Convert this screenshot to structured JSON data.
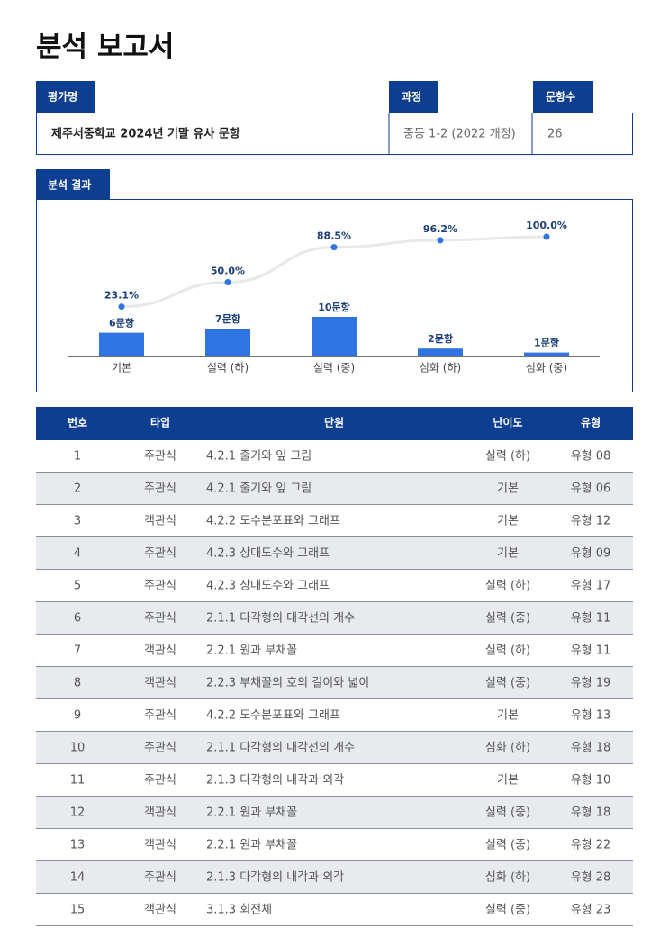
{
  "header": {
    "title": "분석 보고서"
  },
  "info": {
    "labels": [
      "평가명",
      "과정",
      "문항수"
    ],
    "values": [
      "제주서중학교 2024년 기말 유사 문항",
      "중등 1-2 (2022 개정)",
      "26"
    ]
  },
  "section": {
    "title": "분석 결과"
  },
  "chart_data": {
    "type": "combo",
    "categories": [
      "기본",
      "실력 (하)",
      "실력 (중)",
      "심화 (하)",
      "심화 (중)"
    ],
    "bars": {
      "values": [
        6,
        7,
        10,
        2,
        1
      ],
      "value_labels": [
        "6문항",
        "7문항",
        "10문항",
        "2문항",
        "1문항"
      ],
      "color": "#2f74e0"
    },
    "line": {
      "values": [
        23.1,
        50.0,
        88.5,
        96.2,
        100.0
      ],
      "value_labels": [
        "23.1%",
        "50.0%",
        "88.5%",
        "96.2%",
        "100.0%"
      ],
      "color": "#e6e8ec",
      "marker_color": "#2f74e0"
    }
  },
  "table": {
    "columns": [
      "번호",
      "타입",
      "단원",
      "난이도",
      "유형"
    ],
    "rows": [
      [
        "1",
        "주관식",
        "4.2.1 줄기와 잎 그림",
        "실력 (하)",
        "유형 08"
      ],
      [
        "2",
        "주관식",
        "4.2.1 줄기와 잎 그림",
        "기본",
        "유형 06"
      ],
      [
        "3",
        "객관식",
        "4.2.2 도수분포표와 그래프",
        "기본",
        "유형 12"
      ],
      [
        "4",
        "주관식",
        "4.2.3 상대도수와 그래프",
        "기본",
        "유형 09"
      ],
      [
        "5",
        "주관식",
        "4.2.3 상대도수와 그래프",
        "실력 (하)",
        "유형 17"
      ],
      [
        "6",
        "주관식",
        "2.1.1 다각형의 대각선의 개수",
        "실력 (중)",
        "유형 11"
      ],
      [
        "7",
        "객관식",
        "2.2.1 원과 부채꼴",
        "실력 (하)",
        "유형 11"
      ],
      [
        "8",
        "객관식",
        "2.2.3 부채꼴의 호의 길이와 넓이",
        "실력 (중)",
        "유형 19"
      ],
      [
        "9",
        "주관식",
        "4.2.2 도수분포표와 그래프",
        "기본",
        "유형 13"
      ],
      [
        "10",
        "주관식",
        "2.1.1 다각형의 대각선의 개수",
        "심화 (하)",
        "유형 18"
      ],
      [
        "11",
        "주관식",
        "2.1.3 다각형의 내각과 외각",
        "기본",
        "유형 10"
      ],
      [
        "12",
        "객관식",
        "2.2.1 원과 부채꼴",
        "실력 (중)",
        "유형 18"
      ],
      [
        "13",
        "객관식",
        "2.2.1 원과 부채꼴",
        "실력 (중)",
        "유형 22"
      ],
      [
        "14",
        "주관식",
        "2.1.3 다각형의 내각과 외각",
        "심화 (하)",
        "유형 28"
      ],
      [
        "15",
        "객관식",
        "3.1.3 회전체",
        "실력 (중)",
        "유형 23"
      ]
    ]
  }
}
